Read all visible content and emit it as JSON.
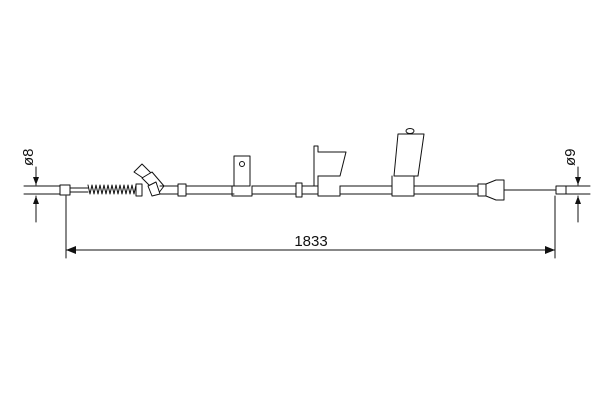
{
  "drawing": {
    "overall_length": "1833",
    "left_end_diameter": "ø8",
    "right_end_diameter": "ø9",
    "colors": {
      "line": "#111111",
      "background": "#ffffff"
    }
  }
}
